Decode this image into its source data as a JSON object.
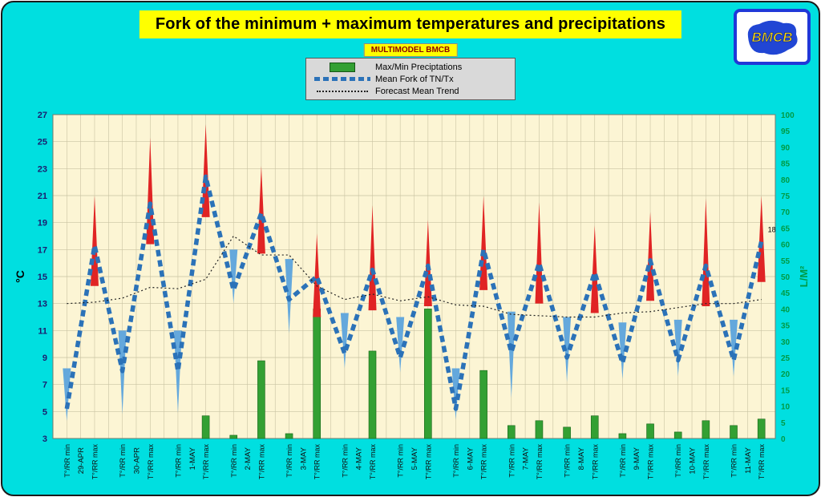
{
  "header": {
    "title": "Fork of the minimum + maximum temperatures and precipitations",
    "subtitle": "MULTIMODEL BMCB"
  },
  "legend": {
    "items": [
      {
        "label": "Max/Min Preciptations",
        "marker": "green-bar"
      },
      {
        "label": "Mean Fork of TN/Tx",
        "marker": "blue-dashed-line"
      },
      {
        "label": "Forecast Mean Trend",
        "marker": "black-dotted-line"
      }
    ]
  },
  "logo": {
    "text": "BMCB"
  },
  "chart_data": {
    "type": "combo-bar-line",
    "title": "Fork of the minimum + maximum temperatures and precipitations",
    "dates": [
      "29-APR",
      "30-APR",
      "1-MAY",
      "2-MAY",
      "3-MAY",
      "4-MAY",
      "5-MAY",
      "6-MAY",
      "7-MAY",
      "8-MAY",
      "9-MAY",
      "10-MAY",
      "11-MAY"
    ],
    "x_tick_labels": [
      "T°/RR min",
      "T°/RR max",
      "T°/RR min",
      "T°/RR max",
      "T°/RR min",
      "T°/RR max",
      "T°/RR min",
      "T°/RR max",
      "T°/RR min",
      "T°/RR max",
      "T°/RR min",
      "T°/RR max",
      "T°/RR min",
      "T°/RR max",
      "T°/RR min",
      "T°/RR max",
      "T°/RR min",
      "T°/RR max",
      "T°/RR min",
      "T°/RR max",
      "T°/RR min",
      "T°/RR max",
      "T°/RR min",
      "T°/RR max",
      "T°/RR min",
      "T°/RR max"
    ],
    "left_axis": {
      "label": "°C",
      "min": 3,
      "max": 27,
      "step": 2,
      "tick_color": "#1c1c6e"
    },
    "right_axis": {
      "label": "L/M²",
      "min": 0,
      "max": 100,
      "step": 5,
      "tick_color": "#009a44"
    },
    "plot_bg": "#fcf5d4",
    "grid_color": "#c9c3a2",
    "series": [
      {
        "name": "Max/Min Preciptations",
        "type": "bar",
        "axis": "right",
        "color": "#33a033",
        "values": [
          0,
          0,
          0,
          0,
          0,
          7,
          1,
          24,
          1.5,
          40,
          0,
          27,
          0,
          40,
          0,
          21,
          4,
          5.5,
          3.5,
          7,
          1.5,
          4.5,
          2,
          5.5,
          4,
          6
        ]
      },
      {
        "name": "Fork max spikes",
        "type": "spike-up",
        "color": "#e02424",
        "values": [
          null,
          21,
          null,
          25.3,
          null,
          26.3,
          null,
          23.2,
          null,
          18.2,
          null,
          20.3,
          null,
          19.2,
          null,
          21,
          null,
          20.5,
          null,
          18.8,
          null,
          19.8,
          null,
          20.8,
          null,
          21
        ]
      },
      {
        "name": "Fork min spikes",
        "type": "spike-down",
        "color": "#64a8dc",
        "values": [
          4.3,
          null,
          4.8,
          null,
          4.9,
          null,
          13,
          null,
          10.8,
          null,
          8.2,
          null,
          7.9,
          null,
          4.4,
          null,
          6,
          null,
          7.2,
          null,
          7.4,
          null,
          7.6,
          null,
          7.6,
          null
        ]
      },
      {
        "name": "Mean Fork of TN/Tx",
        "type": "dashed-line",
        "axis": "left",
        "color": "#2b72b8",
        "values": [
          5.2,
          17.3,
          8,
          20.4,
          8,
          22.4,
          14,
          19.7,
          13.3,
          15,
          9.3,
          15.5,
          9,
          15.8,
          5.2,
          17,
          9.4,
          16,
          9,
          15.3,
          8.6,
          16.2,
          8.8,
          15.8,
          8.8,
          17.6
        ]
      },
      {
        "name": "Forecast Mean Trend",
        "type": "dotted-line",
        "axis": "left",
        "color": "#222222",
        "values": [
          13,
          13.1,
          13.4,
          14.2,
          14.1,
          14.8,
          18,
          16.6,
          16.6,
          14.3,
          13.3,
          13.7,
          13.2,
          13.5,
          12.9,
          12.8,
          12.2,
          12.1,
          12,
          12,
          12.3,
          12.4,
          12.7,
          13,
          13,
          13.3
        ]
      }
    ],
    "annotations": [
      {
        "text": "18",
        "x_index": 25,
        "value": 18.3
      }
    ]
  }
}
